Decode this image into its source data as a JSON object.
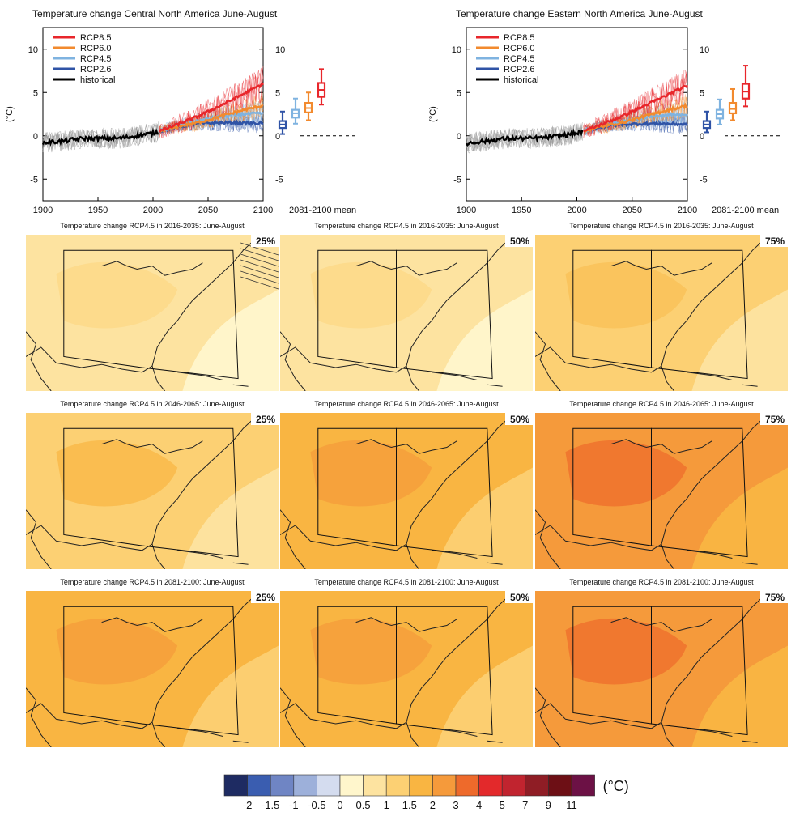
{
  "colors": {
    "rcp85": "#e8262b",
    "rcp60": "#f28a2e",
    "rcp45": "#7fb3e0",
    "rcp26": "#2f53a6",
    "historical": "#000000",
    "hist_spread": "#9a9a9a"
  },
  "timeseries": {
    "y_unit_label": "(°C)",
    "period_mean_label": "2081-2100 mean",
    "legend": [
      "RCP8.5",
      "RCP6.0",
      "RCP4.5",
      "RCP2.6",
      "historical"
    ]
  },
  "chart_data": [
    {
      "type": "line",
      "title": "Temperature change Central North America June-August",
      "ylabel": "(°C)",
      "xlim": [
        1900,
        2100
      ],
      "ylim": [
        -7.5,
        12.5
      ],
      "xticks": [
        1900,
        1950,
        2000,
        2050,
        2100
      ],
      "yticks": [
        -5,
        0,
        5,
        10
      ],
      "grid": false,
      "legend_position": "top-left",
      "series": [
        {
          "name": "historical",
          "x": [
            1900,
            1910,
            1920,
            1930,
            1940,
            1950,
            1960,
            1970,
            1980,
            1990,
            2000,
            2005
          ],
          "y": [
            -0.8,
            -0.7,
            -0.6,
            -0.4,
            -0.3,
            -0.3,
            -0.3,
            -0.3,
            -0.1,
            0.1,
            0.3,
            0.5
          ]
        },
        {
          "name": "RCP2.6",
          "x": [
            2005,
            2020,
            2040,
            2060,
            2080,
            2100
          ],
          "y": [
            0.5,
            1.0,
            1.4,
            1.5,
            1.5,
            1.4
          ]
        },
        {
          "name": "RCP4.5",
          "x": [
            2005,
            2020,
            2040,
            2060,
            2080,
            2100
          ],
          "y": [
            0.5,
            1.1,
            1.7,
            2.2,
            2.5,
            2.6
          ]
        },
        {
          "name": "RCP6.0",
          "x": [
            2005,
            2020,
            2040,
            2060,
            2080,
            2100
          ],
          "y": [
            0.5,
            1.0,
            1.5,
            2.2,
            2.9,
            3.5
          ]
        },
        {
          "name": "RCP8.5",
          "x": [
            2005,
            2020,
            2040,
            2060,
            2080,
            2100
          ],
          "y": [
            0.5,
            1.2,
            2.2,
            3.4,
            4.7,
            6.0
          ]
        }
      ],
      "boxes_2081_2100": [
        {
          "name": "RCP2.6",
          "min": 0.2,
          "q1": 0.9,
          "median": 1.3,
          "q3": 1.7,
          "max": 2.8
        },
        {
          "name": "RCP4.5",
          "min": 1.4,
          "q1": 2.1,
          "median": 2.6,
          "q3": 3.0,
          "max": 4.3
        },
        {
          "name": "RCP6.0",
          "min": 1.8,
          "q1": 2.7,
          "median": 3.2,
          "q3": 3.8,
          "max": 5.0
        },
        {
          "name": "RCP8.5",
          "min": 3.6,
          "q1": 4.5,
          "median": 5.3,
          "q3": 6.1,
          "max": 7.7
        }
      ]
    },
    {
      "type": "line",
      "title": "Temperature change Eastern North America June-August",
      "ylabel": "(°C)",
      "xlim": [
        1900,
        2100
      ],
      "ylim": [
        -7.5,
        12.5
      ],
      "xticks": [
        1900,
        1950,
        2000,
        2050,
        2100
      ],
      "yticks": [
        -5,
        0,
        5,
        10
      ],
      "grid": false,
      "legend_position": "top-left",
      "series": [
        {
          "name": "historical",
          "x": [
            1900,
            1910,
            1920,
            1930,
            1940,
            1950,
            1960,
            1970,
            1980,
            1990,
            2000,
            2005
          ],
          "y": [
            -0.9,
            -0.7,
            -0.6,
            -0.4,
            -0.3,
            -0.3,
            -0.3,
            -0.2,
            -0.1,
            0.1,
            0.3,
            0.5
          ]
        },
        {
          "name": "RCP2.6",
          "x": [
            2005,
            2020,
            2040,
            2060,
            2080,
            2100
          ],
          "y": [
            0.5,
            1.0,
            1.3,
            1.4,
            1.4,
            1.3
          ]
        },
        {
          "name": "RCP4.5",
          "x": [
            2005,
            2020,
            2040,
            2060,
            2080,
            2100
          ],
          "y": [
            0.5,
            1.1,
            1.6,
            2.1,
            2.4,
            2.5
          ]
        },
        {
          "name": "RCP6.0",
          "x": [
            2005,
            2020,
            2040,
            2060,
            2080,
            2100
          ],
          "y": [
            0.5,
            1.0,
            1.5,
            2.2,
            2.9,
            3.5
          ]
        },
        {
          "name": "RCP8.5",
          "x": [
            2005,
            2020,
            2040,
            2060,
            2080,
            2100
          ],
          "y": [
            0.5,
            1.2,
            2.2,
            3.4,
            4.6,
            5.8
          ]
        }
      ],
      "boxes_2081_2100": [
        {
          "name": "RCP2.6",
          "min": 0.4,
          "q1": 0.9,
          "median": 1.3,
          "q3": 1.7,
          "max": 2.8
        },
        {
          "name": "RCP4.5",
          "min": 1.3,
          "q1": 2.0,
          "median": 2.5,
          "q3": 3.0,
          "max": 4.2
        },
        {
          "name": "RCP6.0",
          "min": 1.8,
          "q1": 2.6,
          "median": 3.1,
          "q3": 3.8,
          "max": 5.4
        },
        {
          "name": "RCP8.5",
          "min": 3.4,
          "q1": 4.3,
          "median": 5.1,
          "q3": 6.0,
          "max": 8.1
        }
      ]
    },
    {
      "type": "heatmap",
      "title": "Temperature change RCP4.5 in 2016-2035: June-August",
      "panels": [
        {
          "percentile": "25%",
          "level": 1.0
        },
        {
          "percentile": "50%",
          "level": 1.0
        },
        {
          "percentile": "75%",
          "level": 1.5
        }
      ]
    },
    {
      "type": "heatmap",
      "title": "Temperature change RCP4.5 in 2046-2065: June-August",
      "panels": [
        {
          "percentile": "25%",
          "level": 1.5
        },
        {
          "percentile": "50%",
          "level": 2.0
        },
        {
          "percentile": "75%",
          "level": 3.0
        }
      ]
    },
    {
      "type": "heatmap",
      "title": "Temperature change RCP4.5 in 2081-2100: June-August",
      "panels": [
        {
          "percentile": "25%",
          "level": 2.0
        },
        {
          "percentile": "50%",
          "level": 2.0
        },
        {
          "percentile": "75%",
          "level": 3.0
        }
      ]
    }
  ],
  "colorbar": {
    "unit": "(°C)",
    "tick_labels": [
      "-2",
      "-1.5",
      "-1",
      "-0.5",
      "0",
      "0.5",
      "1",
      "1.5",
      "2",
      "3",
      "4",
      "5",
      "7",
      "9",
      "11"
    ],
    "colors": [
      "#1e2b62",
      "#3a5db0",
      "#6f85c4",
      "#9db0da",
      "#d4dcef",
      "#fff6cc",
      "#fde3a0",
      "#fcd073",
      "#f9b542",
      "#f59a3b",
      "#ee6a2b",
      "#e3292b",
      "#c1242f",
      "#8f1d25",
      "#6d0f15",
      "#6c1145"
    ]
  }
}
